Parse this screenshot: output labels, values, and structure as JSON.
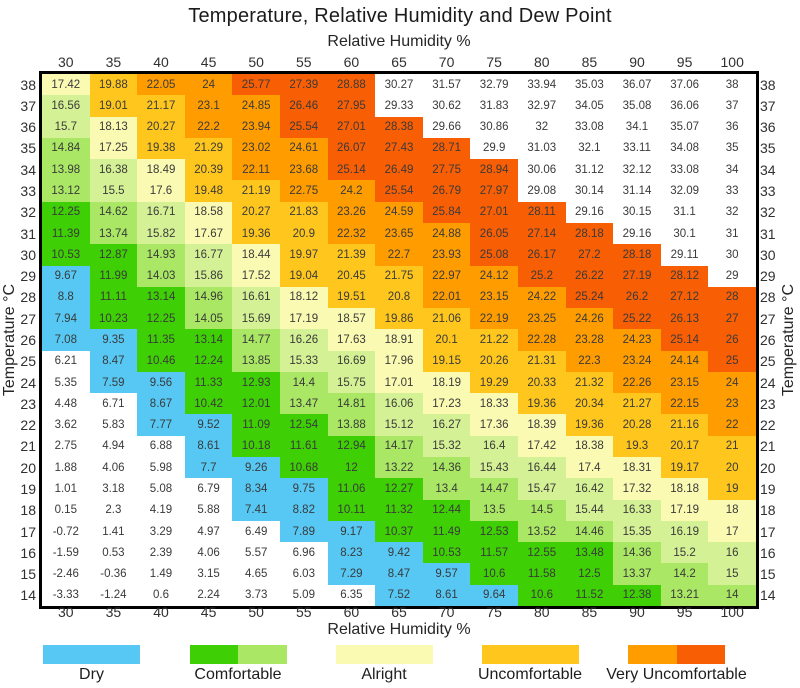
{
  "title": "Temperature, Relative Humidity and Dew Point",
  "axes": {
    "x_label_top": "Relative Humidity %",
    "x_label_bottom": "Relative Humidity %",
    "y_label_left": "Temperature °C",
    "y_label_right": "Temperature °C"
  },
  "chart_data": {
    "type": "heatmap",
    "title": "Temperature, Relative Humidity and Dew Point",
    "x_axis": "Relative Humidity %",
    "y_axis": "Temperature °C",
    "value_meaning": "Dew point temperature °C shown in each cell, colored by comfort category",
    "x": [
      30,
      35,
      40,
      45,
      50,
      55,
      60,
      65,
      70,
      75,
      80,
      85,
      90,
      95,
      100
    ],
    "y": [
      38,
      37,
      36,
      35,
      34,
      33,
      32,
      31,
      30,
      29,
      28,
      27,
      26,
      25,
      24,
      23,
      22,
      21,
      20,
      19,
      18,
      17,
      16,
      15,
      14
    ],
    "values": [
      [
        17.42,
        19.88,
        22.05,
        24,
        25.77,
        27.39,
        28.88,
        30.27,
        31.57,
        32.79,
        33.94,
        35.03,
        36.07,
        37.06,
        38
      ],
      [
        16.56,
        19.01,
        21.17,
        23.1,
        24.85,
        26.46,
        27.95,
        29.33,
        30.62,
        31.83,
        32.97,
        34.05,
        35.08,
        36.06,
        37
      ],
      [
        15.7,
        18.13,
        20.27,
        22.2,
        23.94,
        25.54,
        27.01,
        28.38,
        29.66,
        30.86,
        32,
        33.08,
        34.1,
        35.07,
        36
      ],
      [
        14.84,
        17.25,
        19.38,
        21.29,
        23.02,
        24.61,
        26.07,
        27.43,
        28.71,
        29.9,
        31.03,
        32.1,
        33.11,
        34.08,
        35
      ],
      [
        13.98,
        16.38,
        18.49,
        20.39,
        22.11,
        23.68,
        25.14,
        26.49,
        27.75,
        28.94,
        30.06,
        31.12,
        32.12,
        33.08,
        34
      ],
      [
        13.12,
        15.5,
        17.6,
        19.48,
        21.19,
        22.75,
        24.2,
        25.54,
        26.79,
        27.97,
        29.08,
        30.14,
        31.14,
        32.09,
        33
      ],
      [
        12.25,
        14.62,
        16.71,
        18.58,
        20.27,
        21.83,
        23.26,
        24.59,
        25.84,
        27.01,
        28.11,
        29.16,
        30.15,
        31.1,
        32
      ],
      [
        11.39,
        13.74,
        15.82,
        17.67,
        19.36,
        20.9,
        22.32,
        23.65,
        24.88,
        26.05,
        27.14,
        28.18,
        29.16,
        30.1,
        31
      ],
      [
        10.53,
        12.87,
        14.93,
        16.77,
        18.44,
        19.97,
        21.39,
        22.7,
        23.93,
        25.08,
        26.17,
        27.2,
        28.18,
        29.11,
        30
      ],
      [
        9.67,
        11.99,
        14.03,
        15.86,
        17.52,
        19.04,
        20.45,
        21.75,
        22.97,
        24.12,
        25.2,
        26.22,
        27.19,
        28.12,
        29
      ],
      [
        8.8,
        11.11,
        13.14,
        14.96,
        16.61,
        18.12,
        19.51,
        20.8,
        22.01,
        23.15,
        24.22,
        25.24,
        26.2,
        27.12,
        28
      ],
      [
        7.94,
        10.23,
        12.25,
        14.05,
        15.69,
        17.19,
        18.57,
        19.86,
        21.06,
        22.19,
        23.25,
        24.26,
        25.22,
        26.13,
        27
      ],
      [
        7.08,
        9.35,
        11.35,
        13.14,
        14.77,
        16.26,
        17.63,
        18.91,
        20.1,
        21.22,
        22.28,
        23.28,
        24.23,
        25.14,
        26
      ],
      [
        6.21,
        8.47,
        10.46,
        12.24,
        13.85,
        15.33,
        16.69,
        17.96,
        19.15,
        20.26,
        21.31,
        22.3,
        23.24,
        24.14,
        25
      ],
      [
        5.35,
        7.59,
        9.56,
        11.33,
        12.93,
        14.4,
        15.75,
        17.01,
        18.19,
        19.29,
        20.33,
        21.32,
        22.26,
        23.15,
        24
      ],
      [
        4.48,
        6.71,
        8.67,
        10.42,
        12.01,
        13.47,
        14.81,
        16.06,
        17.23,
        18.33,
        19.36,
        20.34,
        21.27,
        22.15,
        23
      ],
      [
        3.62,
        5.83,
        7.77,
        9.52,
        11.09,
        12.54,
        13.88,
        15.12,
        16.27,
        17.36,
        18.39,
        19.36,
        20.28,
        21.16,
        22
      ],
      [
        2.75,
        4.94,
        6.88,
        8.61,
        10.18,
        11.61,
        12.94,
        14.17,
        15.32,
        16.4,
        17.42,
        18.38,
        19.3,
        20.17,
        21
      ],
      [
        1.88,
        4.06,
        5.98,
        7.7,
        9.26,
        10.68,
        12,
        13.22,
        14.36,
        15.43,
        16.44,
        17.4,
        18.31,
        19.17,
        20
      ],
      [
        1.01,
        3.18,
        5.08,
        6.79,
        8.34,
        9.75,
        11.06,
        12.27,
        13.4,
        14.47,
        15.47,
        16.42,
        17.32,
        18.18,
        19
      ],
      [
        0.15,
        2.3,
        4.19,
        5.88,
        7.41,
        8.82,
        10.11,
        11.32,
        12.44,
        13.5,
        14.5,
        15.44,
        16.33,
        17.19,
        18
      ],
      [
        -0.72,
        1.41,
        3.29,
        4.97,
        6.49,
        7.89,
        9.17,
        10.37,
        11.49,
        12.53,
        13.52,
        14.46,
        15.35,
        16.19,
        17
      ],
      [
        -1.59,
        0.53,
        2.39,
        4.06,
        5.57,
        6.96,
        8.23,
        9.42,
        10.53,
        11.57,
        12.55,
        13.48,
        14.36,
        15.2,
        16
      ],
      [
        -2.46,
        -0.36,
        1.49,
        3.15,
        4.65,
        6.03,
        7.29,
        8.47,
        9.57,
        10.6,
        11.58,
        12.5,
        13.37,
        14.2,
        15
      ],
      [
        -3.33,
        -1.24,
        0.6,
        2.24,
        3.73,
        5.09,
        6.35,
        7.52,
        8.61,
        9.64,
        10.6,
        11.52,
        12.38,
        13.21,
        14
      ]
    ],
    "color_bins": [
      {
        "below": 7,
        "color": "#FFFFFF",
        "category": "off-scale low"
      },
      {
        "below": 10,
        "color": "#56C8F3",
        "category": "Dry"
      },
      {
        "below": 13.4,
        "color": "#3ECF04",
        "category": "Comfortable"
      },
      {
        "below": 15,
        "color": "#A9E764",
        "category": "Comfortable"
      },
      {
        "below": 17,
        "color": "#D5F195",
        "category": "Alright"
      },
      {
        "below": 19,
        "color": "#FAFAB3",
        "category": "Alright"
      },
      {
        "below": 22,
        "color": "#FFC71E",
        "category": "Uncomfortable"
      },
      {
        "below": 25,
        "color": "#FF9C00",
        "category": "Very Uncomfortable"
      },
      {
        "below": 29,
        "color": "#F85E04",
        "category": "Very Uncomfortable"
      },
      {
        "below": 999,
        "color": "#FFFFFF",
        "category": "off-scale high"
      }
    ],
    "color_exceptions": [
      {
        "t": 33,
        "rh": 30,
        "color": "#A9E764"
      },
      {
        "t": 20,
        "rh": 65,
        "color": "#A9E764"
      },
      {
        "t": 16,
        "rh": 85,
        "color": "#3ECF04"
      },
      {
        "t": 15,
        "rh": 90,
        "color": "#A9E764"
      },
      {
        "t": 14,
        "rh": 95,
        "color": "#A9E764"
      }
    ],
    "grid": false,
    "legend_position": "bottom"
  },
  "legend": {
    "items": [
      {
        "label": "Dry",
        "colors": [
          "#56C8F3"
        ]
      },
      {
        "label": "Comfortable",
        "colors": [
          "#3ECF04",
          "#A9E764"
        ]
      },
      {
        "label": "Alright",
        "colors": [
          "#FAFAB3"
        ]
      },
      {
        "label": "Uncomfortable",
        "colors": [
          "#FFC71E"
        ]
      },
      {
        "label": "Very Uncomfortable",
        "colors": [
          "#FF9C00",
          "#F85E04"
        ]
      }
    ]
  }
}
